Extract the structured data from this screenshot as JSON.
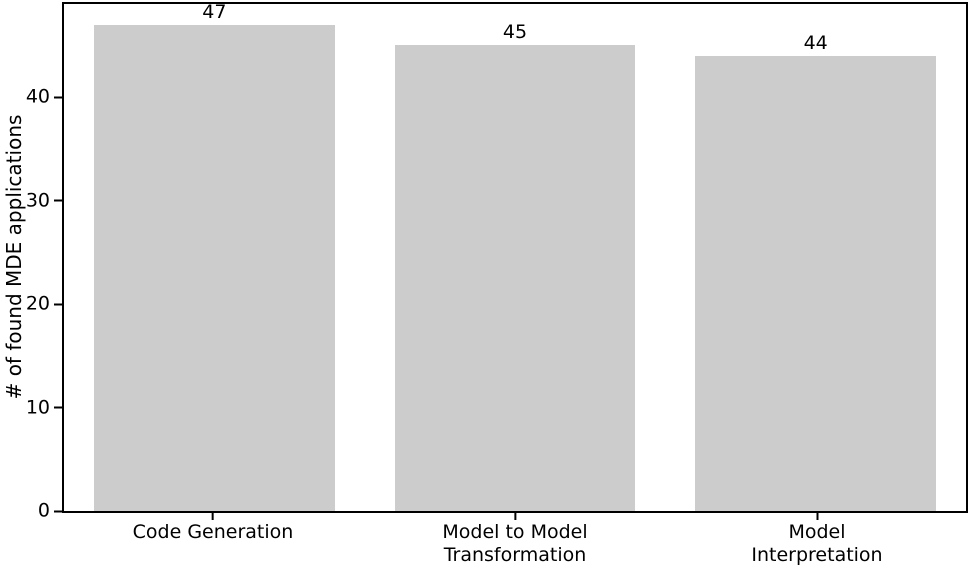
{
  "chart_data": {
    "type": "bar",
    "categories": [
      "Code Generation",
      "Model to Model\nTransformation",
      "Model Interpretation"
    ],
    "values": [
      47,
      45,
      44
    ],
    "value_labels": [
      "47",
      "45",
      "44"
    ],
    "title": "",
    "xlabel": "",
    "ylabel": "# of found MDE applications",
    "ylim": [
      0,
      49
    ],
    "yticks": [
      0,
      10,
      20,
      30,
      40
    ],
    "bar_color": "#cccccc",
    "axis_color": "#000000",
    "text_color": "#000000",
    "background_color": "#ffffff",
    "grid": false,
    "legend": "none",
    "bar_width_fraction": 0.8
  }
}
